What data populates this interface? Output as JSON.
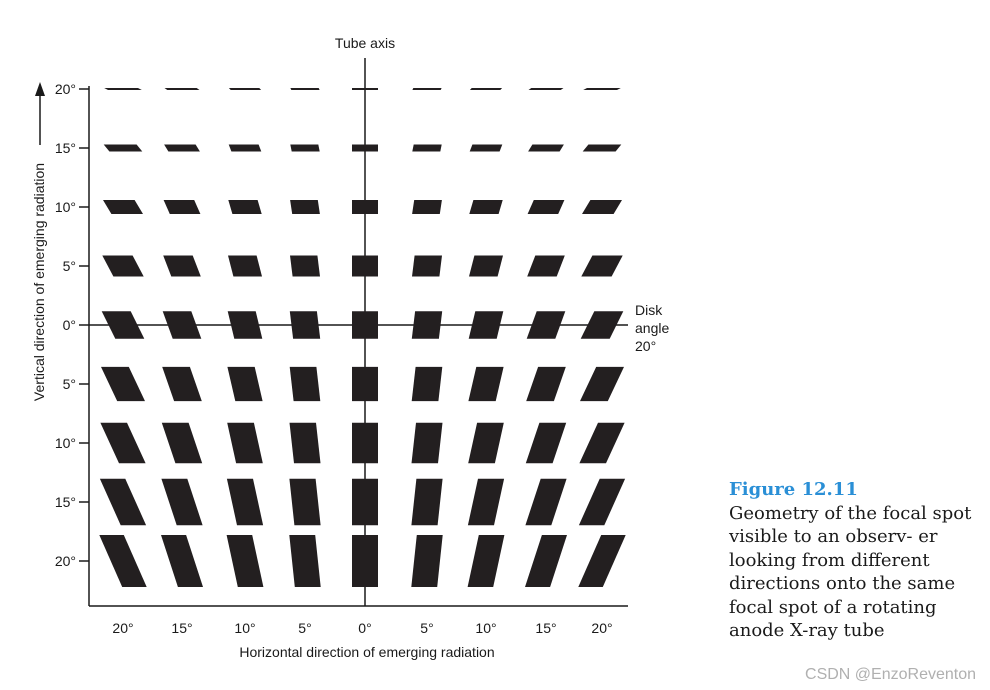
{
  "diagram": {
    "tube_axis_label": "Tube axis",
    "disk_label_line1": "Disk",
    "disk_label_line2": "angle",
    "disk_label_line3": "20°",
    "x_axis_label": "Horizontal direction of emerging radiation",
    "y_axis_label": "Vertical direction of emerging radiation",
    "x_ticks": [
      "20°",
      "15°",
      "10°",
      "5°",
      "0°",
      "5°",
      "10°",
      "15°",
      "20°"
    ],
    "y_ticks": [
      "20°",
      "15°",
      "10°",
      "5°",
      "0°",
      "5°",
      "10°",
      "15°",
      "20°"
    ],
    "horizontal_angles_deg": [
      -20,
      -15,
      -10,
      -5,
      0,
      5,
      10,
      15,
      20
    ],
    "vertical_angles_deg": [
      20,
      15,
      10,
      5,
      0,
      -5,
      -10,
      -15,
      -20
    ],
    "disk_angle_deg": 20,
    "mark_color": "#231f20"
  },
  "caption": {
    "title": "Figure 12.11",
    "text": "Geometry of the focal spot visible to an observ- er looking from different directions onto the same focal spot of a rotating anode X-ray tube"
  },
  "watermark": "CSDN @EnzoReventon"
}
